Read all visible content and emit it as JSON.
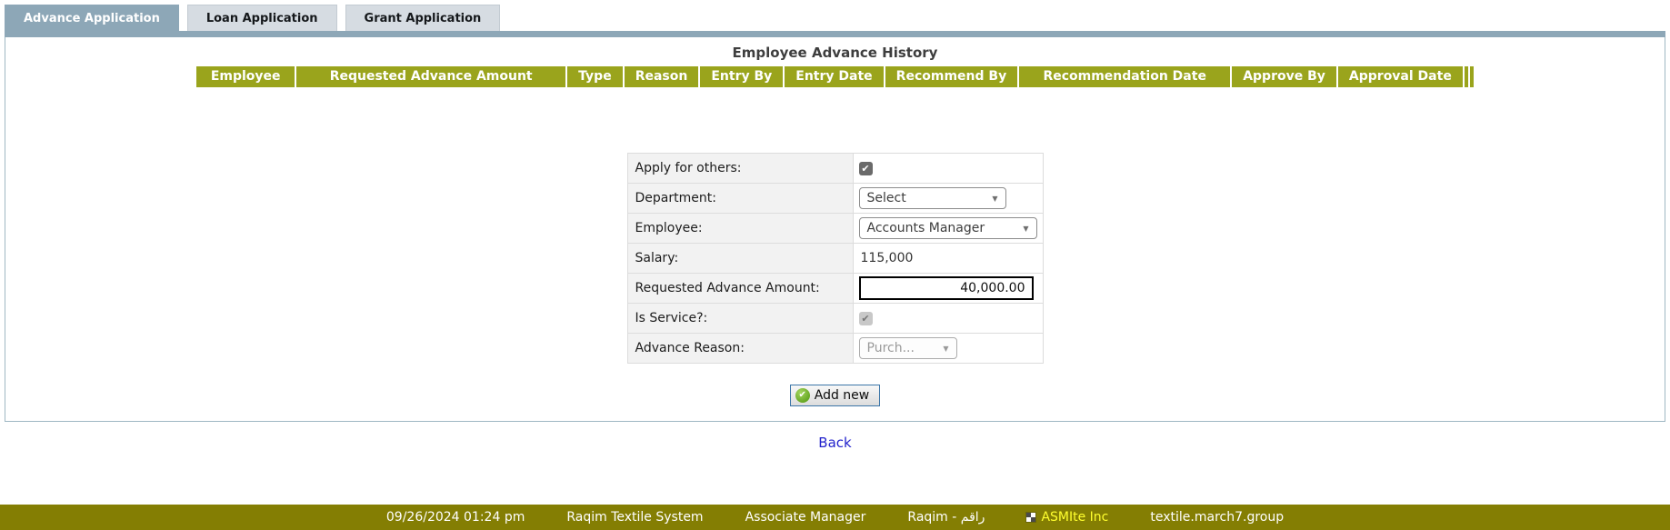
{
  "tabs": [
    {
      "label": "Advance Application",
      "active": true
    },
    {
      "label": "Loan Application",
      "active": false
    },
    {
      "label": "Grant Application",
      "active": false
    }
  ],
  "panel": {
    "title": "Employee Advance History",
    "table_headers": [
      "Employee",
      "Requested Advance Amount",
      "Type",
      "Reason",
      "Entry By",
      "Entry Date",
      "Recommend By",
      "Recommendation Date",
      "Approve By",
      "Approval Date"
    ],
    "form": {
      "rows": [
        {
          "label": "Apply for others:",
          "type": "checkbox",
          "checked": true
        },
        {
          "label": "Department:",
          "type": "select",
          "value": "Select"
        },
        {
          "label": "Employee:",
          "type": "select",
          "value": "Accounts Manager"
        },
        {
          "label": "Salary:",
          "type": "static",
          "value": "115,000"
        },
        {
          "label": "Requested Advance Amount:",
          "type": "input",
          "value": "40,000.00"
        },
        {
          "label": "Is Service?:",
          "type": "checkbox",
          "checked": true,
          "disabled": true
        },
        {
          "label": "Advance Reason:",
          "type": "select",
          "value": "Purch...",
          "disabled": true
        }
      ]
    },
    "add_button_label": "Add new"
  },
  "back_link": "Back",
  "footer": {
    "datetime": "09/26/2024 01:24 pm",
    "system_name": "Raqim Textile System",
    "role": "Associate Manager",
    "brand": "Raqim - راقم",
    "company": "ASMIte Inc",
    "domain": "textile.march7.group"
  },
  "colors": {
    "active_tab": "#8DA7B7",
    "inactive_tab": "#D6DCE2",
    "grid_header": "#9AA41C",
    "footer_bar": "#847E03",
    "company_text": "#FFFF2E",
    "link_blue": "#2323CC"
  }
}
